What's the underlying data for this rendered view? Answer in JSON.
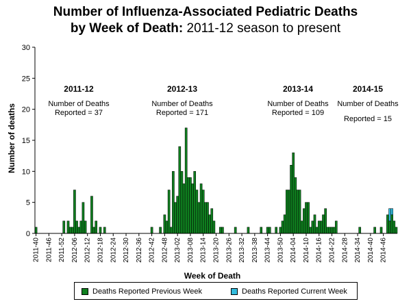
{
  "title": {
    "bold": "Number of Influenza-Associated Pediatric Deaths",
    "line2_bold": "by Week of Death:",
    "line2_normal": " 2011-12 season to present"
  },
  "seasons": [
    {
      "name": "2011-12",
      "label": "Number of Deaths",
      "count": "Reported = 37"
    },
    {
      "name": "2012-13",
      "label": "Number of Deaths",
      "count": "Reported = 171"
    },
    {
      "name": "2013-14",
      "label": "Number of Deaths",
      "count": "Reported = 109"
    },
    {
      "name": "2014-15",
      "label": "Number of Deaths",
      "count": "Reported = 15"
    }
  ],
  "legend": {
    "previous": "Deaths Reported Previous Week",
    "current": "Deaths Reported Current Week"
  },
  "colors": {
    "previous": "#0f7f1f",
    "current": "#33bbdd"
  },
  "chart_data": {
    "type": "bar",
    "title": "Number of Influenza-Associated Pediatric Deaths by Week of Death: 2011-12 season to present",
    "xlabel": "Week of Death",
    "ylabel": "Number of deaths",
    "ylim": [
      0,
      30
    ],
    "yticks": [
      0,
      5,
      10,
      15,
      20,
      25,
      30
    ],
    "grid": false,
    "legend_position": "bottom",
    "xtick_labels": [
      "2011-40",
      "2011-46",
      "2011-52",
      "2012-06",
      "2012-12",
      "2012-18",
      "2012-24",
      "2012-30",
      "2012-36",
      "2012-42",
      "2012-48",
      "2013-02",
      "2013-08",
      "2013-14",
      "2013-20",
      "2013-26",
      "2013-32",
      "2013-38",
      "2013-44",
      "2013-50",
      "2014-04",
      "2014-10",
      "2014-16",
      "2014-22",
      "2014-28",
      "2014-34",
      "2014-40",
      "2014-46"
    ],
    "xtick_step_weeks": 6,
    "series": [
      {
        "name": "Deaths Reported Previous Week",
        "values": [
          1,
          0,
          0,
          0,
          0,
          0,
          0,
          0,
          0,
          0,
          0,
          0,
          0,
          2,
          0,
          2,
          1,
          1,
          7,
          2,
          1,
          2,
          5,
          2,
          0,
          0,
          6,
          1,
          2,
          0,
          1,
          0,
          1,
          0,
          0,
          0,
          0,
          0,
          0,
          0,
          0,
          0,
          0,
          0,
          0,
          0,
          0,
          0,
          0,
          0,
          0,
          0,
          0,
          0,
          1,
          0,
          0,
          0,
          1,
          0,
          3,
          2,
          7,
          1,
          10,
          5,
          6,
          14,
          10,
          8,
          17,
          9,
          9,
          8,
          10,
          7,
          5,
          8,
          7,
          5,
          5,
          3,
          4,
          2,
          0,
          0,
          1,
          1,
          0,
          0,
          0,
          0,
          0,
          1,
          0,
          0,
          0,
          0,
          0,
          1,
          0,
          0,
          0,
          0,
          0,
          1,
          0,
          0,
          1,
          1,
          0,
          0,
          1,
          0,
          1,
          2,
          3,
          7,
          7,
          11,
          13,
          9,
          7,
          7,
          2,
          4,
          5,
          5,
          1,
          2,
          3,
          1,
          2,
          2,
          3,
          4,
          1,
          1,
          1,
          1,
          2,
          0,
          0,
          0,
          0,
          0,
          0,
          0,
          0,
          0,
          0,
          1,
          0,
          0,
          0,
          0,
          0,
          0,
          1,
          0,
          0,
          1,
          0,
          0,
          3,
          2,
          3,
          2,
          1
        ]
      },
      {
        "name": "Deaths Reported Current Week",
        "values": [
          0,
          0,
          0,
          0,
          0,
          0,
          0,
          0,
          0,
          0,
          0,
          0,
          0,
          0,
          0,
          0,
          0,
          0,
          0,
          0,
          0,
          0,
          0,
          0,
          0,
          0,
          0,
          0,
          0,
          0,
          0,
          0,
          0,
          0,
          0,
          0,
          0,
          0,
          0,
          0,
          0,
          0,
          0,
          0,
          0,
          0,
          0,
          0,
          0,
          0,
          0,
          0,
          0,
          0,
          0,
          0,
          0,
          0,
          0,
          0,
          0,
          0,
          0,
          0,
          0,
          0,
          0,
          0,
          0,
          0,
          0,
          0,
          0,
          0,
          0,
          0,
          0,
          0,
          0,
          0,
          0,
          0,
          0,
          0,
          0,
          0,
          0,
          0,
          0,
          0,
          0,
          0,
          0,
          0,
          0,
          0,
          0,
          0,
          0,
          0,
          0,
          0,
          0,
          0,
          0,
          0,
          0,
          0,
          0,
          0,
          0,
          0,
          0,
          0,
          0,
          0,
          0,
          0,
          0,
          0,
          0,
          0,
          0,
          0,
          0,
          0,
          0,
          0,
          0,
          0,
          0,
          0,
          0,
          0,
          0,
          0,
          0,
          0,
          0,
          0,
          0,
          0,
          0,
          0,
          0,
          0,
          0,
          0,
          0,
          0,
          0,
          0,
          0,
          0,
          0,
          0,
          0,
          0,
          0,
          0,
          0,
          0,
          0,
          0,
          0,
          2,
          1,
          0,
          0
        ]
      }
    ]
  }
}
